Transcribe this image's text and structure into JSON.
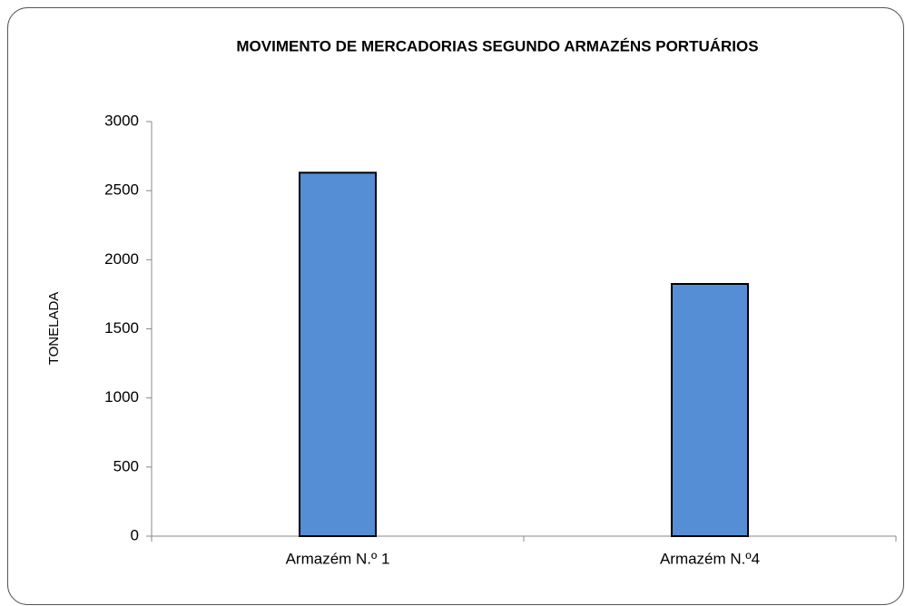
{
  "chart_data": {
    "type": "bar",
    "title": "MOVIMENTO DE MERCADORIAS SEGUNDO ARMAZÉNS PORTUÁRIOS",
    "y_label": "TONELADA",
    "categories": [
      "Armazém N.º 1",
      "Armazém N.º4"
    ],
    "values": [
      2630,
      1825
    ],
    "color": "#558ed5",
    "ylim": [
      0,
      3000
    ],
    "yticks": [
      0,
      500,
      1000,
      1500,
      2000,
      2500,
      3000
    ],
    "grid": false
  }
}
